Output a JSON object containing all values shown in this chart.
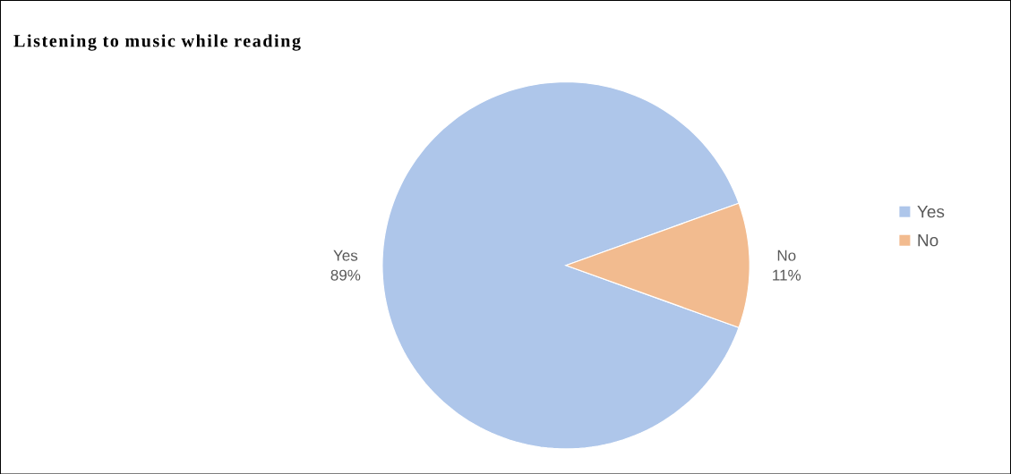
{
  "chart_data": {
    "type": "pie",
    "title": "Listening to music while reading",
    "categories": [
      "Yes",
      "No"
    ],
    "values": [
      89,
      11
    ],
    "value_labels": [
      "89%",
      "11%"
    ],
    "colors": [
      "#aec6ea",
      "#f2bb8f"
    ],
    "legend": "right"
  }
}
